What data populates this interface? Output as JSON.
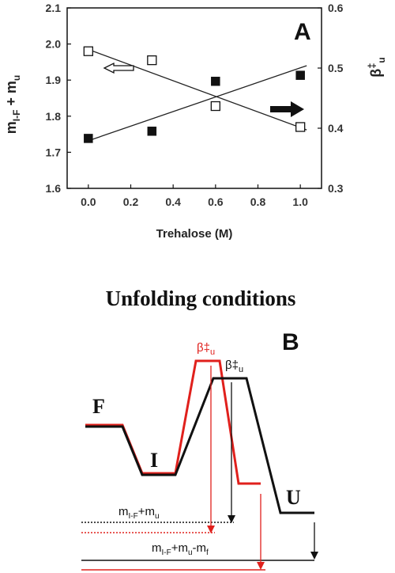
{
  "panel_a": {
    "letter": "A",
    "chart_data": {
      "type": "scatter",
      "title": "",
      "xlabel": "Trehalose (M)",
      "ylabel_left_main": "m",
      "ylabel_left_sub1": "I-F",
      "ylabel_left_mid": " + m",
      "ylabel_left_sub2": "u",
      "ylabel_right_main": "β",
      "ylabel_right_sup": "‡",
      "ylabel_right_sub": "u",
      "xlim": [
        -0.1,
        1.1
      ],
      "ylim_left": [
        1.6,
        2.1
      ],
      "ylim_right": [
        0.3,
        0.6
      ],
      "x_ticks": [
        "0.0",
        "0.2",
        "0.4",
        "0.6",
        "0.8",
        "1.0"
      ],
      "y_ticks_left": [
        "1.6",
        "1.7",
        "1.8",
        "1.9",
        "2.0",
        "2.1"
      ],
      "y_ticks_right": [
        "0.3",
        "0.4",
        "0.5",
        "0.6"
      ],
      "grid": false,
      "series": [
        {
          "axis": "left",
          "marker": "open-square",
          "x": [
            0.0,
            0.3,
            0.6,
            1.0
          ],
          "y": [
            1.98,
            1.955,
            1.828,
            1.77
          ],
          "fit": [
            [
              -0.01,
              1.987
            ],
            [
              1.03,
              1.762
            ]
          ],
          "arrow": "points-left"
        },
        {
          "axis": "right",
          "marker": "filled-square",
          "x": [
            0.0,
            0.3,
            0.6,
            1.0
          ],
          "y": [
            0.383,
            0.395,
            0.478,
            0.488
          ],
          "fit": [
            [
              -0.01,
              0.378
            ],
            [
              1.03,
              0.504
            ]
          ],
          "arrow": "points-right"
        }
      ]
    }
  },
  "panel_b": {
    "letter": "B",
    "title": "Unfolding conditions",
    "states": {
      "f": "F",
      "i": "I",
      "u": "U"
    },
    "beta_red_main": "β‡",
    "beta_red_sub": "u",
    "beta_black_main": "β‡",
    "beta_black_sub": "u",
    "label1_main": "m",
    "label1_sub1": "I-F",
    "label1_mid": "+m",
    "label1_sub2": "u",
    "label2_main": "m",
    "label2_sub1": "I-F",
    "label2_mid": "+m",
    "label2_sub2": "u",
    "label2_tail": "-m",
    "label2_sub3": "f",
    "colors": {
      "black": "#111111",
      "red": "#e0201c"
    }
  }
}
